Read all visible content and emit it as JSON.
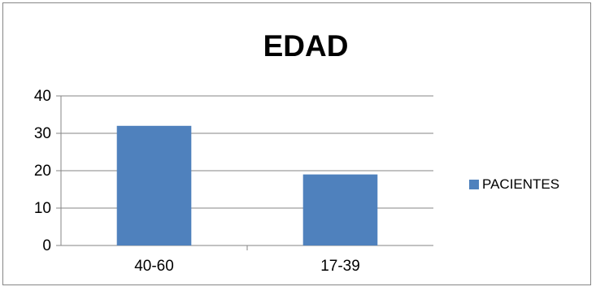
{
  "chart_data": {
    "type": "bar",
    "title": "EDAD",
    "categories": [
      "40-60",
      "17-39"
    ],
    "series": [
      {
        "name": "PACIENTES",
        "values": [
          32,
          19
        ],
        "color": "#4F81BD"
      }
    ],
    "ylim": [
      0,
      40
    ],
    "yticks": [
      "0",
      "10",
      "20",
      "30",
      "40"
    ],
    "grid": true,
    "legend_position": "right"
  }
}
